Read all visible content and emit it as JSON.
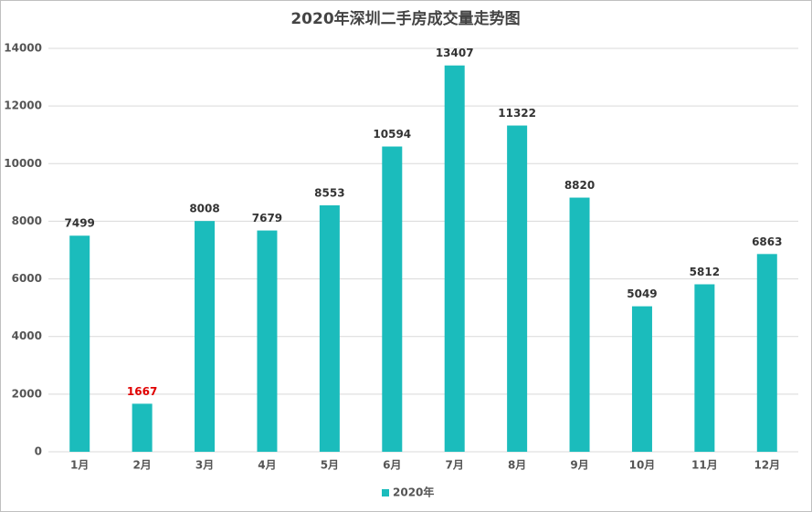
{
  "chart_data": {
    "type": "bar",
    "title": "2020年深圳二手房成交量走势图",
    "categories": [
      "1月",
      "2月",
      "3月",
      "4月",
      "5月",
      "6月",
      "7月",
      "8月",
      "9月",
      "10月",
      "11月",
      "12月"
    ],
    "series": [
      {
        "name": "2020年",
        "color": "#1bbcbc",
        "values": [
          7499,
          1667,
          8008,
          7679,
          8553,
          10594,
          13407,
          11322,
          8820,
          5049,
          5812,
          6863
        ],
        "value_label_colors": [
          "#333333",
          "#e00000",
          "#333333",
          "#333333",
          "#333333",
          "#333333",
          "#333333",
          "#333333",
          "#333333",
          "#333333",
          "#333333",
          "#333333"
        ]
      }
    ],
    "ylim": [
      0,
      14000
    ],
    "yticks": [
      0,
      2000,
      4000,
      6000,
      8000,
      10000,
      12000,
      14000
    ],
    "grid": true,
    "legend": "bottom"
  }
}
